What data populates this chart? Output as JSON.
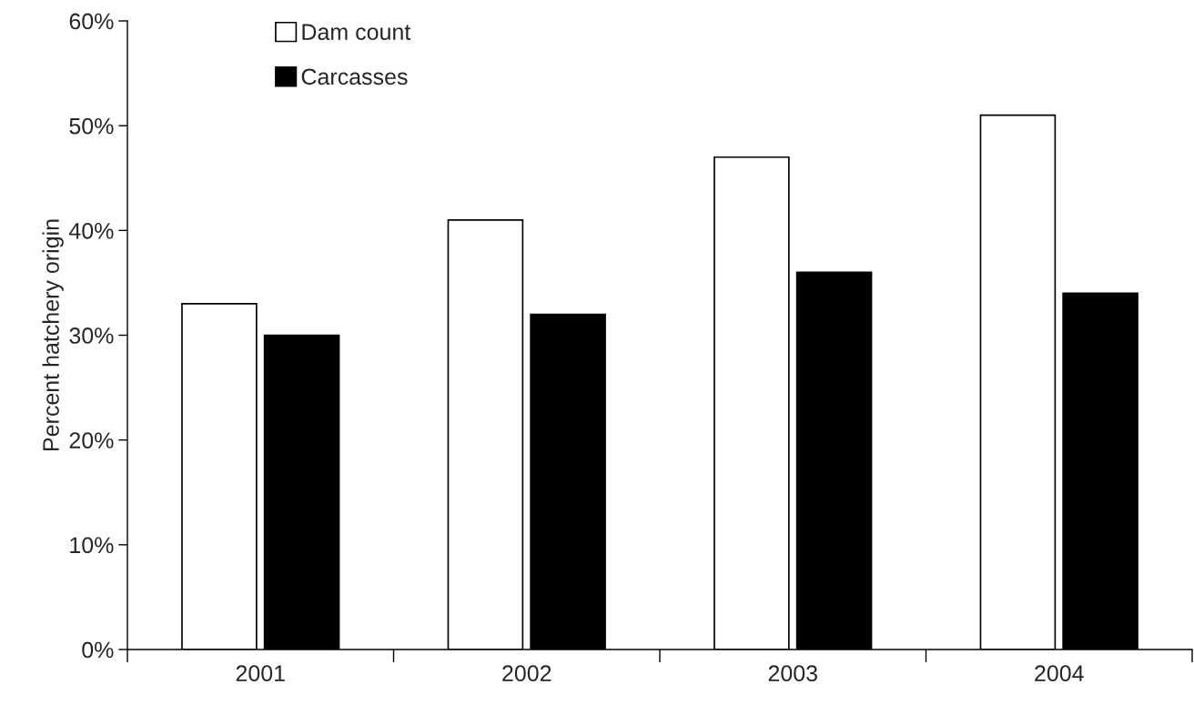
{
  "chart_data": {
    "type": "bar",
    "ylabel": "Percent hatchery origin",
    "categories": [
      "2001",
      "2002",
      "2003",
      "2004"
    ],
    "series": [
      {
        "name": "Dam count",
        "color": "#ffffff",
        "values": [
          33,
          41,
          47,
          51
        ]
      },
      {
        "name": "Carcasses",
        "color": "#000000",
        "values": [
          30,
          32,
          36,
          34
        ]
      }
    ],
    "ylim": [
      0,
      60
    ],
    "yticks": [
      {
        "value": 0,
        "label": "0%"
      },
      {
        "value": 10,
        "label": "10%"
      },
      {
        "value": 20,
        "label": "20%"
      },
      {
        "value": 30,
        "label": "30%"
      },
      {
        "value": 40,
        "label": "40%"
      },
      {
        "value": 50,
        "label": "50%"
      },
      {
        "value": 60,
        "label": "60%"
      }
    ],
    "grid": false,
    "legend": "top left"
  }
}
